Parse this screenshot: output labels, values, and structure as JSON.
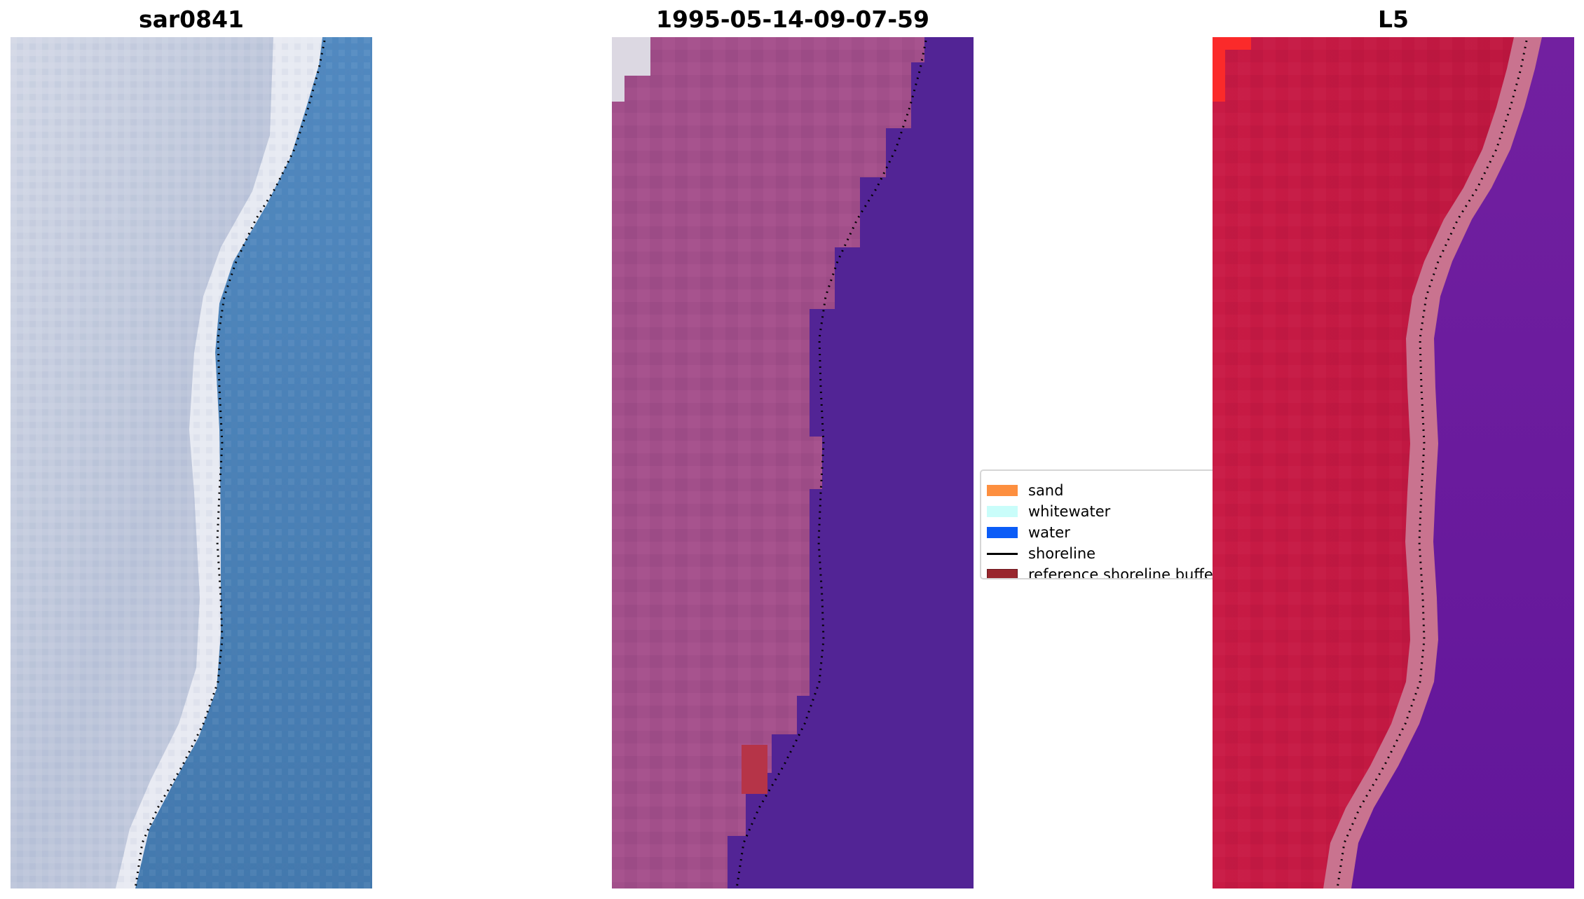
{
  "panels": [
    {
      "title": "sar0841"
    },
    {
      "title": "1995-05-14-09-07-59"
    },
    {
      "title": "L5"
    }
  ],
  "legend": {
    "items": [
      {
        "label": "sand",
        "color": "#fd8f3f",
        "kind": "patch"
      },
      {
        "label": "whitewater",
        "color": "#c9fdfa",
        "kind": "patch"
      },
      {
        "label": "water",
        "color": "#0b5cf7",
        "kind": "patch"
      },
      {
        "label": "shoreline",
        "color": "#000000",
        "kind": "line"
      },
      {
        "label": "reference shoreline buffer",
        "color": "#99262d",
        "kind": "patch"
      }
    ]
  },
  "colors": {
    "rgb_land": "#c6cfe0",
    "rgb_water": "#4a80b6",
    "class_land": "#a24f8a",
    "class_water": "#522495",
    "class_buffer_patch": "#b63448",
    "index_land": "#c01a44",
    "index_water": "#6a1a9a",
    "shoreline": "#000000"
  }
}
